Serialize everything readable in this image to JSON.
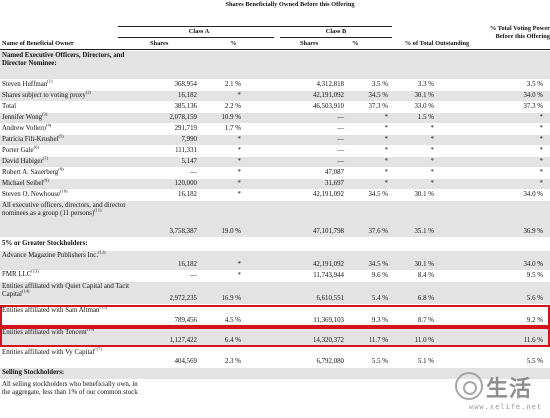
{
  "header": {
    "shares_title": "Shares Beneficially Owned Before this Offering",
    "class_a": "Class A",
    "class_b": "Class B",
    "name_col": "Name of Beneficial Owner",
    "shares": "Shares",
    "pct": "%",
    "pct_total": "% of Total Outstanding",
    "voting": "% Total Voting Power Before this Offering"
  },
  "rows": [
    {
      "name": "Named Executive Officers, Directors, and Director Nominee:",
      "section": true
    },
    {
      "name": "Steven Huffman",
      "fn": "(1)",
      "a_val": "368,954",
      "a_pct": "2.1 %",
      "b_val": "4,312,818",
      "b_pct": "3.5 %",
      "tot": "3.3 %",
      "vote": "3.5 %"
    },
    {
      "name": "Shares subject to voting proxy",
      "fn": "(2)",
      "a_val": "16,182",
      "a_pct": "*",
      "b_val": "42,191,092",
      "b_pct": "34.5 %",
      "tot": "30.1 %",
      "vote": "34.0 %"
    },
    {
      "name": "Total",
      "fn": "",
      "a_val": "385,136",
      "a_pct": "2.2 %",
      "b_val": "46,503,910",
      "b_pct": "37.3 %",
      "tot": "33.0 %",
      "vote": "37.3 %"
    },
    {
      "name": "Jennifer Wong",
      "fn": "(3)",
      "a_val": "2,078,159",
      "a_pct": "10.9 %",
      "b_val": "—",
      "b_pct": "*",
      "tot": "1.5 %",
      "vote": "*"
    },
    {
      "name": "Andrew Vollero",
      "fn": "(4)",
      "a_val": "291,719",
      "a_pct": "1.7 %",
      "b_val": "—",
      "b_pct": "*",
      "tot": "*",
      "vote": "*"
    },
    {
      "name": "Patricia Fili-Krushel",
      "fn": "(5)",
      "a_val": "7,990",
      "a_pct": "*",
      "b_val": "—",
      "b_pct": "*",
      "tot": "*",
      "vote": "*"
    },
    {
      "name": "Porter Gale",
      "fn": "(6)",
      "a_val": "111,331",
      "a_pct": "*",
      "b_val": "—",
      "b_pct": "*",
      "tot": "*",
      "vote": "*"
    },
    {
      "name": "David Habiger",
      "fn": "(7)",
      "a_val": "5,147",
      "a_pct": "*",
      "b_val": "—",
      "b_pct": "*",
      "tot": "*",
      "vote": "*"
    },
    {
      "name": "Robert A. Sauerberg",
      "fn": "(8)",
      "a_val": "—",
      "a_pct": "*",
      "b_val": "47,087",
      "b_pct": "*",
      "tot": "*",
      "vote": "*"
    },
    {
      "name": "Michael Seibel",
      "fn": "(9)",
      "a_val": "120,000",
      "a_pct": "*",
      "b_val": "31,697",
      "b_pct": "*",
      "tot": "*",
      "vote": "*"
    },
    {
      "name": "Steven O. Newhouse",
      "fn": "(10)",
      "a_val": "16,182",
      "a_pct": "*",
      "b_val": "42,191,092",
      "b_pct": "34.5 %",
      "tot": "30.1 %",
      "vote": "34.0 %"
    },
    {
      "name": "All executive officers, directors, and director nominees as a group (11 persons)",
      "fn": "(11)",
      "a_val": "3,758,387",
      "a_pct": "19.0 %",
      "b_val": "47,101,798",
      "b_pct": "37.6 %",
      "tot": "35.1 %",
      "vote": "36.9 %"
    },
    {
      "name": "5% or Greater Stockholders:",
      "section": true
    },
    {
      "name": "Advance Magazine Publishers Inc.",
      "fn": "(12)",
      "a_val": "16,182",
      "a_pct": "*",
      "b_val": "42,191,092",
      "b_pct": "34.5 %",
      "tot": "30.1 %",
      "vote": "34.0 %"
    },
    {
      "name": "FMR LLC",
      "fn": "(13)",
      "a_val": "—",
      "a_pct": "*",
      "b_val": "11,743,944",
      "b_pct": "9.6 %",
      "tot": "8.4 %",
      "vote": "9.5 %"
    },
    {
      "name": "Entities affiliated with Quiet Capital and Tacit Capital",
      "fn": "(14)",
      "a_val": "2,972,235",
      "a_pct": "16.9 %",
      "b_val": "6,610,551",
      "b_pct": "5.4 %",
      "tot": "6.8 %",
      "vote": "5.6 %"
    },
    {
      "name": "Entities affiliated with Sam Altman",
      "fn": "(15)",
      "a_val": "789,456",
      "a_pct": "4.5 %",
      "b_val": "11,369,103",
      "b_pct": "9.3 %",
      "tot": "8.7 %",
      "vote": "9.2 %"
    },
    {
      "name": "Entities affiliated with Tencent",
      "fn": "(16)",
      "a_val": "1,127,422",
      "a_pct": "6.4 %",
      "b_val": "14,320,372",
      "b_pct": "11.7 %",
      "tot": "11.0 %",
      "vote": "11.6 %"
    },
    {
      "name": "Entities affiliated with Vy Capital",
      "fn": "(17)",
      "a_val": "404,569",
      "a_pct": "2.3 %",
      "b_val": "6,792,080",
      "b_pct": "5.5 %",
      "tot": "5.1 %",
      "vote": "5.5 %"
    },
    {
      "name": "Selling Stockholders:",
      "section": true
    },
    {
      "name": "All selling stockholders who beneficially own, in the aggregate, less than 1% of our common stock",
      "fn": "",
      "a_val": "",
      "a_pct": "",
      "b_val": "",
      "b_pct": "",
      "tot": "",
      "vote": ""
    }
  ],
  "watermark": {
    "text": "生活",
    "url": "www.xelife.net"
  }
}
